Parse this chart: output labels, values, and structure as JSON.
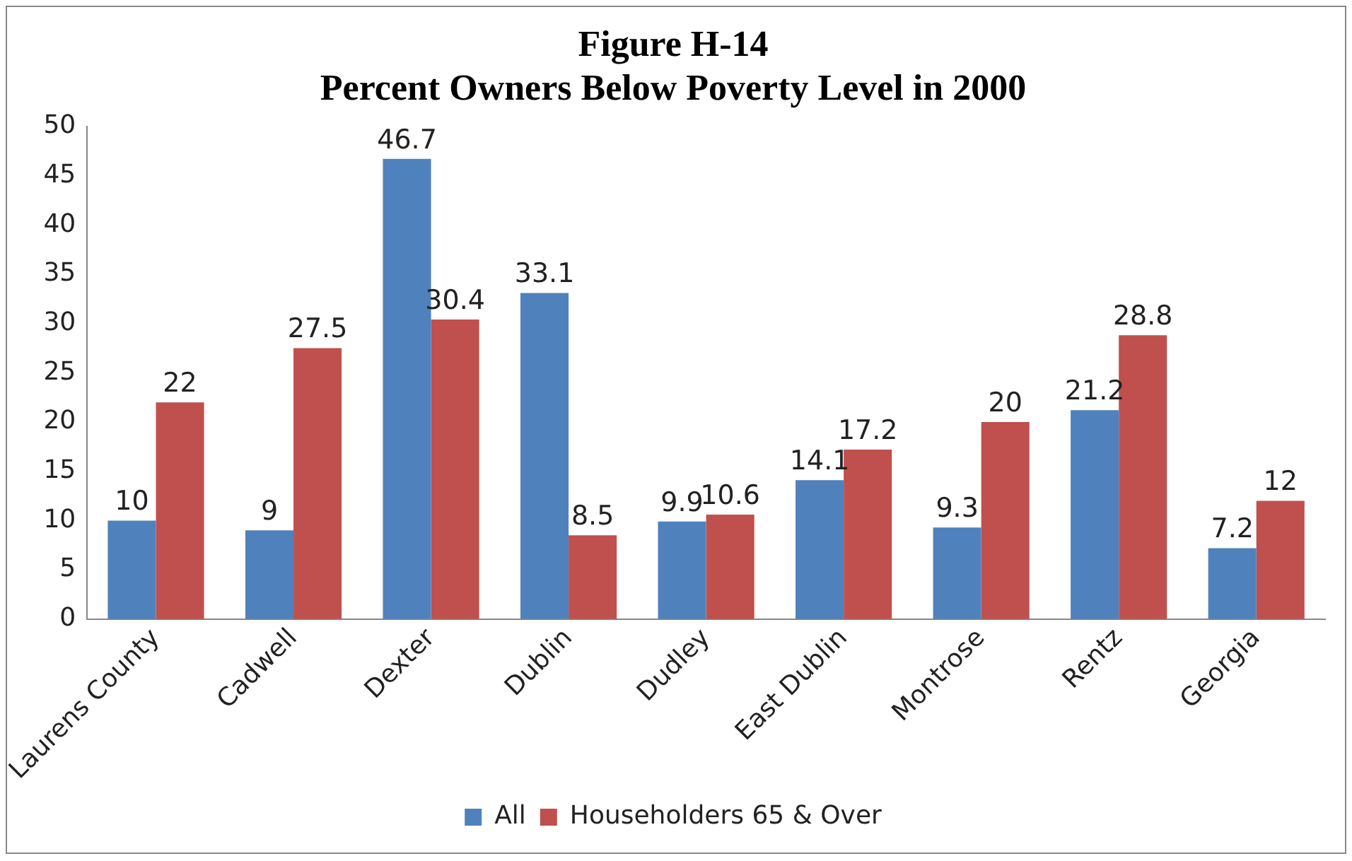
{
  "chart_data": {
    "type": "bar",
    "title": "Figure H-14",
    "subtitle": "Percent Owners Below Poverty Level in 2000",
    "categories": [
      "Laurens County",
      "Cadwell",
      "Dexter",
      "Dublin",
      "Dudley",
      "East Dublin",
      "Montrose",
      "Rentz",
      "Georgia"
    ],
    "series": [
      {
        "name": "All",
        "color": "#4f81bd",
        "values": [
          10,
          9,
          46.7,
          33.1,
          9.9,
          14.1,
          9.3,
          21.2,
          7.2
        ]
      },
      {
        "name": "Householders 65 & Over",
        "color": "#c0504d",
        "values": [
          22,
          27.5,
          30.4,
          8.5,
          10.6,
          17.2,
          20,
          28.8,
          12
        ]
      }
    ],
    "ylim": [
      0,
      50
    ],
    "yticks": [
      0,
      5,
      10,
      15,
      20,
      25,
      30,
      35,
      40,
      45,
      50
    ],
    "grid": false,
    "legend": "bottom",
    "data_labels": true
  }
}
